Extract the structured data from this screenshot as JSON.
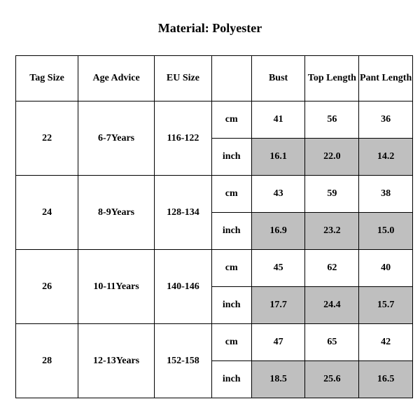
{
  "title": "Material: Polyester",
  "colors": {
    "shaded_bg": "#bfbfbf",
    "normal_bg": "#ffffff",
    "border": "#000000",
    "text": "#000000"
  },
  "typography": {
    "title_fontsize_pt": 14,
    "cell_fontsize_pt": 11,
    "font_family": "Times New Roman"
  },
  "columns": {
    "tag_size": "Tag Size",
    "age_advice": "Age Advice",
    "eu_size": "EU Size",
    "unit": "",
    "bust": "Bust",
    "top_length": "Top Length",
    "pant_length": "Pant Length"
  },
  "unit_labels": {
    "cm": "cm",
    "inch": "inch"
  },
  "rows": [
    {
      "tag_size": "22",
      "age_advice": "6-7Years",
      "eu_size": "116-122",
      "cm": {
        "bust": "41",
        "top_length": "56",
        "pant_length": "36"
      },
      "inch": {
        "bust": "16.1",
        "top_length": "22.0",
        "pant_length": "14.2"
      }
    },
    {
      "tag_size": "24",
      "age_advice": "8-9Years",
      "eu_size": "128-134",
      "cm": {
        "bust": "43",
        "top_length": "59",
        "pant_length": "38"
      },
      "inch": {
        "bust": "16.9",
        "top_length": "23.2",
        "pant_length": "15.0"
      }
    },
    {
      "tag_size": "26",
      "age_advice": "10-11Years",
      "eu_size": "140-146",
      "cm": {
        "bust": "45",
        "top_length": "62",
        "pant_length": "40"
      },
      "inch": {
        "bust": "17.7",
        "top_length": "24.4",
        "pant_length": "15.7"
      }
    },
    {
      "tag_size": "28",
      "age_advice": "12-13Years",
      "eu_size": "152-158",
      "cm": {
        "bust": "47",
        "top_length": "65",
        "pant_length": "42"
      },
      "inch": {
        "bust": "18.5",
        "top_length": "25.6",
        "pant_length": "16.5"
      }
    }
  ]
}
